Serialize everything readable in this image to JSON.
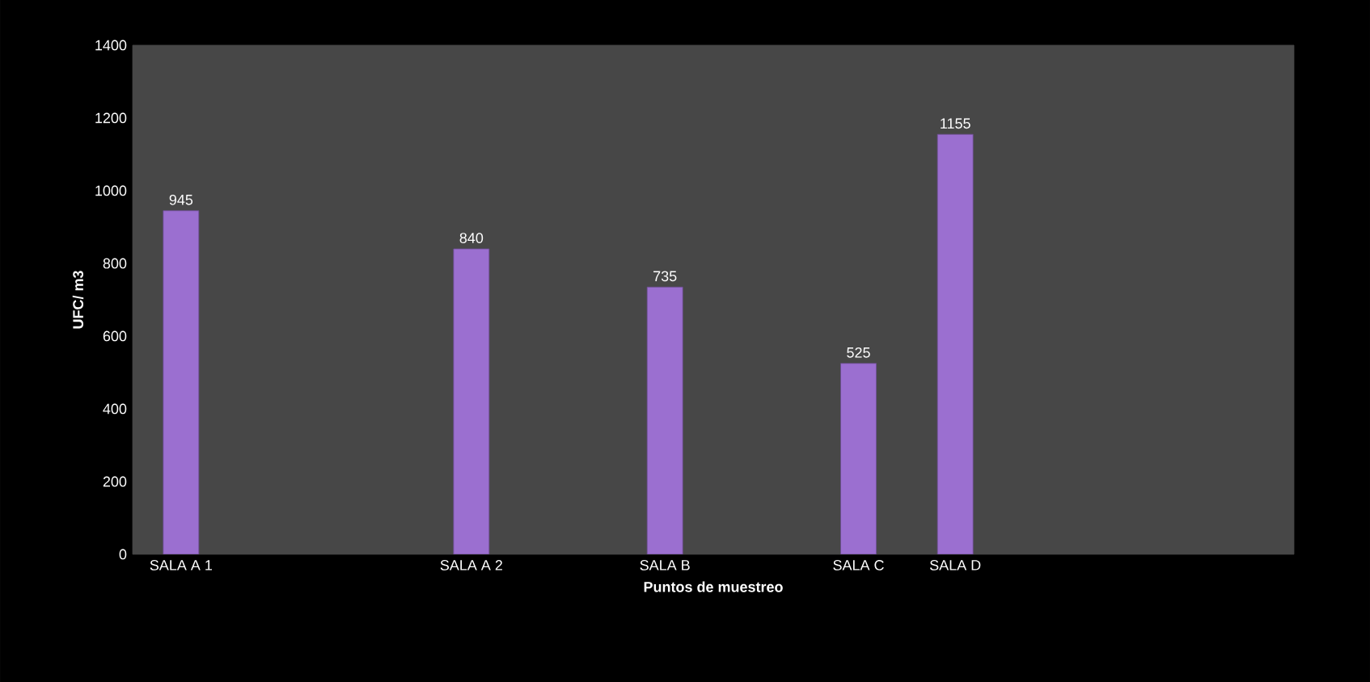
{
  "chart_data": {
    "type": "bar",
    "xlabel": "Puntos de muestreo",
    "ylabel": "UFC/ m3",
    "categories": [
      "SALA A 1",
      null,
      null,
      "SALA A 2",
      null,
      "SALA B",
      null,
      "SALA C",
      "SALA D",
      null,
      null,
      null
    ],
    "values": [
      945,
      null,
      null,
      840,
      null,
      735,
      null,
      525,
      1155,
      null,
      null,
      null
    ],
    "color": "#9b6fd0",
    "data_labels": true,
    "ylim": [
      0,
      1400
    ],
    "yticks": [
      0,
      200,
      400,
      600,
      800,
      1000,
      1200,
      1400
    ]
  }
}
